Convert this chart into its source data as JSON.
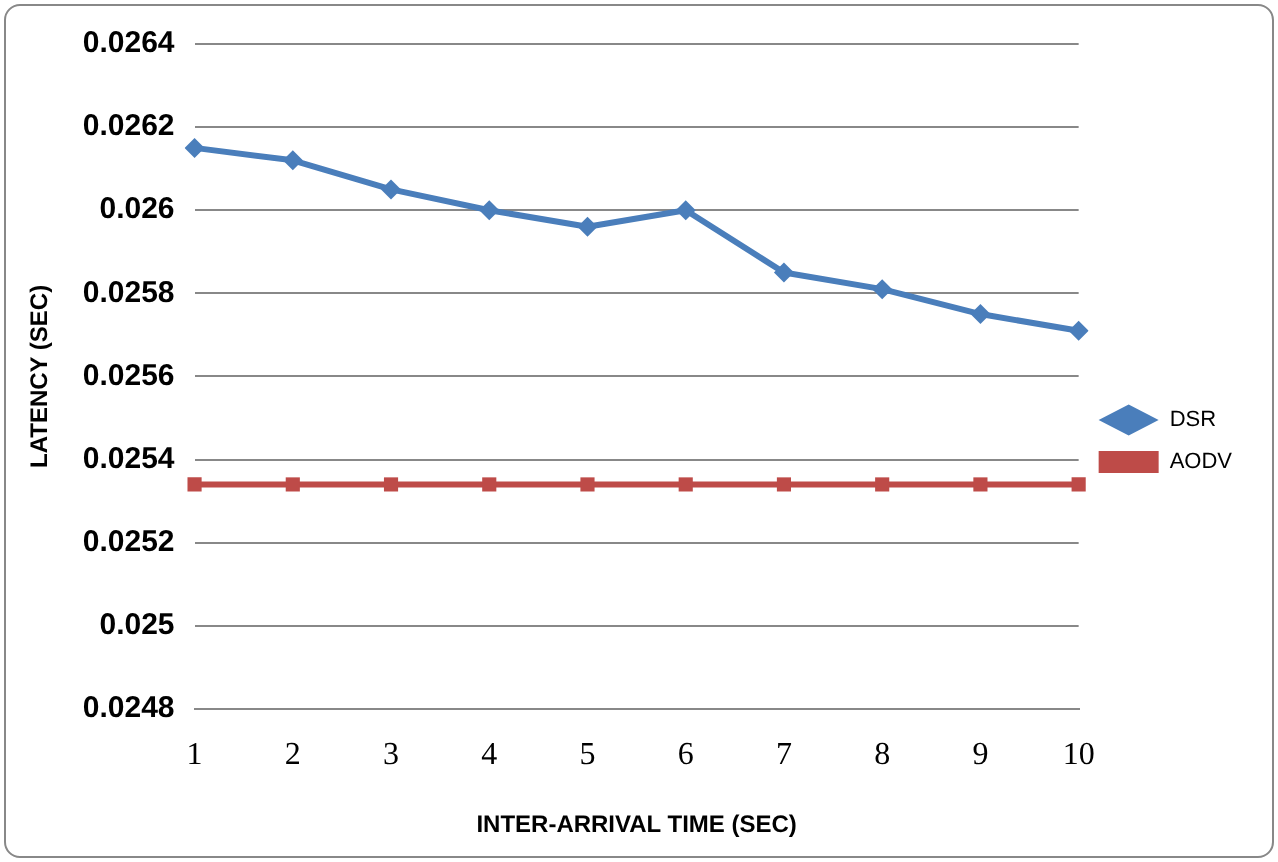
{
  "chart_data": {
    "type": "line",
    "xlabel": "INTER-ARRIVAL TIME (SEC)",
    "ylabel": "LATENCY (SEC)",
    "categories": [
      "1",
      "2",
      "3",
      "4",
      "5",
      "6",
      "7",
      "8",
      "9",
      "10"
    ],
    "series": [
      {
        "name": "DSR",
        "color": "#4a7ebb",
        "marker": "diamond",
        "values": [
          0.02615,
          0.02612,
          0.02605,
          0.026,
          0.02596,
          0.026,
          0.02585,
          0.02581,
          0.02575,
          0.02571
        ]
      },
      {
        "name": "AODV",
        "color": "#be4b48",
        "marker": "square",
        "values": [
          0.02534,
          0.02534,
          0.02534,
          0.02534,
          0.02534,
          0.02534,
          0.02534,
          0.02534,
          0.02534,
          0.02534
        ]
      }
    ],
    "ylim": [
      0.0248,
      0.0264
    ],
    "yticks": [
      0.0248,
      0.025,
      0.0252,
      0.0254,
      0.0256,
      0.0258,
      0.026,
      0.0262,
      0.0264
    ],
    "grid": "y",
    "legend": "right",
    "line_style": "solid"
  }
}
